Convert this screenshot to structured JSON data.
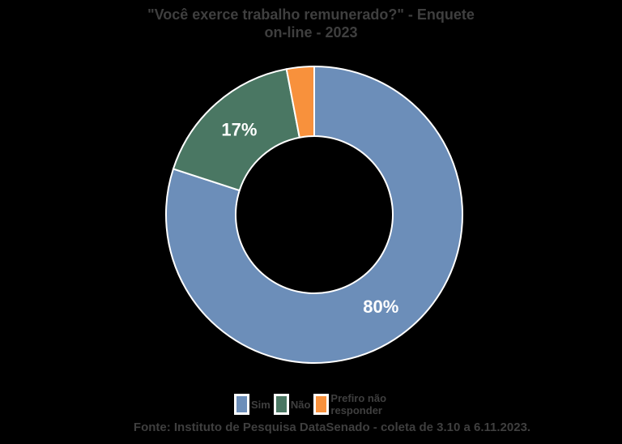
{
  "title": {
    "line1": "\"Você exerce trabalho remunerado?\" - Enquete",
    "line2": "on-line - 2023"
  },
  "footer": "Fonte: Instituto de Pesquisa DataSenado - coleta de 3.10 a 6.11.2023.",
  "colors": {
    "background": "#000000",
    "text": "#3F3F3F",
    "slice_label": "#FFFFFF",
    "slice_border": "#FFFFFF"
  },
  "chart_data": {
    "type": "pie",
    "subtype": "donut",
    "title": "\"Você exerce trabalho remunerado?\" - Enquete on-line - 2023",
    "unit": "%",
    "legend_position": "bottom",
    "categories": [
      "Sim",
      "Não",
      "Prefiro não responder"
    ],
    "values": [
      80,
      17,
      3
    ],
    "slices": [
      {
        "id": "sim",
        "label": "Sim",
        "value": 80,
        "pct_label": "80%",
        "show_label": true,
        "color": "#6C8EB9"
      },
      {
        "id": "nao",
        "label": "Não",
        "value": 17,
        "pct_label": "17%",
        "show_label": true,
        "color": "#4A7763"
      },
      {
        "id": "prefiro-nao-responder",
        "label": "Prefiro não responder",
        "value": 3,
        "pct_label": "3%",
        "show_label": false,
        "color": "#F8913C"
      }
    ]
  }
}
